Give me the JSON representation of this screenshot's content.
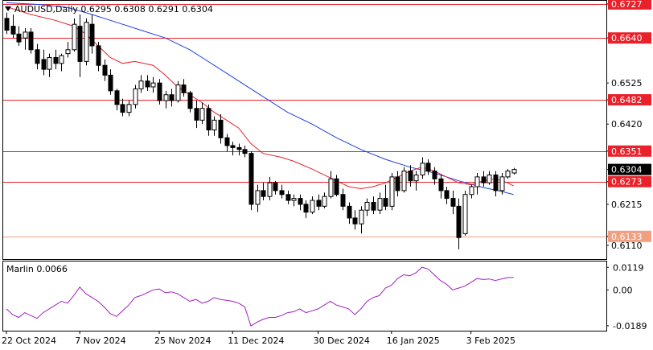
{
  "header": {
    "symbol_line": "AUDUSD,Daily  0.6295 0.6308 0.6291 0.6304",
    "indicator_label": "Marlin 0.0066"
  },
  "colors": {
    "level": "#e8212a",
    "support": "#f0a080",
    "ma_fast": "#e8212a",
    "ma_slow": "#1f3fe0",
    "oscillator": "#a020c0",
    "current_price_bg": "#000000"
  },
  "chart_data": {
    "type": "candlestick",
    "symbol": "AUDUSD",
    "timeframe": "Daily",
    "last_ohlc": {
      "open": 0.6295,
      "high": 0.6308,
      "low": 0.6291,
      "close": 0.6304
    },
    "ylim": [
      0.6075,
      0.6735
    ],
    "price_axis_ticks": [
      0.6727,
      0.664,
      0.6525,
      0.6482,
      0.642,
      0.6351,
      0.6304,
      0.6273,
      0.6215,
      0.6133,
      0.611
    ],
    "x_tick_labels": [
      "22 Oct 2024",
      "7 Nov 2024",
      "25 Nov 2024",
      "11 Dec 2024",
      "30 Dec 2024",
      "16 Jan 2025",
      "3 Feb 2025"
    ],
    "x_tick_index": [
      0,
      12,
      25,
      37,
      51,
      63,
      76
    ],
    "horizontal_levels": [
      {
        "value": 0.6727,
        "label": "0.6727",
        "style": "resistance"
      },
      {
        "value": 0.664,
        "label": "0.6640",
        "style": "resistance"
      },
      {
        "value": 0.6482,
        "label": "0.6482",
        "style": "resistance"
      },
      {
        "value": 0.6351,
        "label": "0.6351",
        "style": "resistance"
      },
      {
        "value": 0.6273,
        "label": "0.6273",
        "style": "resistance"
      },
      {
        "value": 0.6133,
        "label": "0.6133",
        "style": "support"
      }
    ],
    "current_price": 0.6304,
    "candles": [
      [
        0.669,
        0.6705,
        0.665,
        0.666
      ],
      [
        0.667,
        0.67,
        0.664,
        0.665
      ],
      [
        0.665,
        0.667,
        0.662,
        0.663
      ],
      [
        0.664,
        0.6665,
        0.661,
        0.6655
      ],
      [
        0.6655,
        0.6665,
        0.66,
        0.661
      ],
      [
        0.661,
        0.6625,
        0.656,
        0.6575
      ],
      [
        0.6585,
        0.661,
        0.6545,
        0.656
      ],
      [
        0.656,
        0.66,
        0.654,
        0.659
      ],
      [
        0.659,
        0.661,
        0.656,
        0.6575
      ],
      [
        0.6575,
        0.66,
        0.6555,
        0.6595
      ],
      [
        0.66,
        0.663,
        0.659,
        0.661
      ],
      [
        0.661,
        0.669,
        0.6605,
        0.6675
      ],
      [
        0.667,
        0.67,
        0.654,
        0.658
      ],
      [
        0.658,
        0.669,
        0.657,
        0.668
      ],
      [
        0.6675,
        0.67,
        0.66,
        0.662
      ],
      [
        0.662,
        0.663,
        0.6555,
        0.657
      ],
      [
        0.657,
        0.6585,
        0.653,
        0.6545
      ],
      [
        0.6545,
        0.656,
        0.6495,
        0.6505
      ],
      [
        0.6505,
        0.651,
        0.6455,
        0.647
      ],
      [
        0.647,
        0.6485,
        0.644,
        0.645
      ],
      [
        0.645,
        0.648,
        0.644,
        0.647
      ],
      [
        0.647,
        0.652,
        0.646,
        0.651
      ],
      [
        0.651,
        0.6545,
        0.65,
        0.653
      ],
      [
        0.653,
        0.6545,
        0.6505,
        0.6515
      ],
      [
        0.6515,
        0.654,
        0.65,
        0.6525
      ],
      [
        0.6525,
        0.6535,
        0.647,
        0.648
      ],
      [
        0.648,
        0.6505,
        0.646,
        0.6495
      ],
      [
        0.6495,
        0.651,
        0.6465,
        0.648
      ],
      [
        0.648,
        0.653,
        0.6475,
        0.652
      ],
      [
        0.652,
        0.6535,
        0.649,
        0.65
      ],
      [
        0.65,
        0.6505,
        0.645,
        0.646
      ],
      [
        0.646,
        0.648,
        0.641,
        0.643
      ],
      [
        0.643,
        0.6475,
        0.642,
        0.646
      ],
      [
        0.646,
        0.647,
        0.639,
        0.6405
      ],
      [
        0.6405,
        0.644,
        0.639,
        0.643
      ],
      [
        0.643,
        0.6445,
        0.637,
        0.6385
      ],
      [
        0.6385,
        0.6395,
        0.635,
        0.6365
      ],
      [
        0.6365,
        0.6375,
        0.634,
        0.636
      ],
      [
        0.636,
        0.637,
        0.634,
        0.6355
      ],
      [
        0.6355,
        0.6365,
        0.6335,
        0.6345
      ],
      [
        0.6345,
        0.635,
        0.62,
        0.6215
      ],
      [
        0.6215,
        0.6265,
        0.6195,
        0.625
      ],
      [
        0.625,
        0.627,
        0.6225,
        0.6235
      ],
      [
        0.6235,
        0.6285,
        0.6225,
        0.627
      ],
      [
        0.627,
        0.6275,
        0.624,
        0.625
      ],
      [
        0.625,
        0.6265,
        0.623,
        0.624
      ],
      [
        0.624,
        0.625,
        0.6215,
        0.6225
      ],
      [
        0.6225,
        0.624,
        0.621,
        0.623
      ],
      [
        0.623,
        0.624,
        0.62,
        0.6215
      ],
      [
        0.6215,
        0.6225,
        0.618,
        0.6195
      ],
      [
        0.6195,
        0.6235,
        0.619,
        0.6225
      ],
      [
        0.6225,
        0.624,
        0.62,
        0.621
      ],
      [
        0.621,
        0.6245,
        0.6205,
        0.6235
      ],
      [
        0.6235,
        0.63,
        0.623,
        0.628
      ],
      [
        0.628,
        0.629,
        0.6235,
        0.624
      ],
      [
        0.624,
        0.6255,
        0.62,
        0.621
      ],
      [
        0.621,
        0.622,
        0.6165,
        0.618
      ],
      [
        0.618,
        0.62,
        0.615,
        0.6165
      ],
      [
        0.6165,
        0.621,
        0.614,
        0.62
      ],
      [
        0.62,
        0.623,
        0.6185,
        0.622
      ],
      [
        0.622,
        0.6235,
        0.619,
        0.62
      ],
      [
        0.62,
        0.6245,
        0.619,
        0.623
      ],
      [
        0.623,
        0.6265,
        0.62,
        0.621
      ],
      [
        0.621,
        0.6295,
        0.62,
        0.6285
      ],
      [
        0.6285,
        0.63,
        0.6235,
        0.625
      ],
      [
        0.625,
        0.631,
        0.6245,
        0.63
      ],
      [
        0.63,
        0.6315,
        0.626,
        0.6275
      ],
      [
        0.6275,
        0.63,
        0.625,
        0.629
      ],
      [
        0.629,
        0.6335,
        0.628,
        0.632
      ],
      [
        0.632,
        0.633,
        0.629,
        0.63
      ],
      [
        0.63,
        0.631,
        0.6265,
        0.628
      ],
      [
        0.628,
        0.629,
        0.623,
        0.625
      ],
      [
        0.625,
        0.626,
        0.6215,
        0.623
      ],
      [
        0.623,
        0.625,
        0.619,
        0.621
      ],
      [
        0.621,
        0.623,
        0.61,
        0.613
      ],
      [
        0.614,
        0.625,
        0.6135,
        0.624
      ],
      [
        0.624,
        0.6265,
        0.623,
        0.626
      ],
      [
        0.626,
        0.6295,
        0.624,
        0.6285
      ],
      [
        0.6285,
        0.63,
        0.626,
        0.627
      ],
      [
        0.627,
        0.63,
        0.6265,
        0.629
      ],
      [
        0.629,
        0.63,
        0.6235,
        0.625
      ],
      [
        0.625,
        0.6295,
        0.624,
        0.6285
      ],
      [
        0.6285,
        0.6305,
        0.628,
        0.63
      ],
      [
        0.6295,
        0.6308,
        0.6291,
        0.6304
      ]
    ],
    "ma_fast": [
      [
        0,
        0.672
      ],
      [
        4,
        0.67
      ],
      [
        8,
        0.6685
      ],
      [
        11,
        0.667
      ],
      [
        13,
        0.665
      ],
      [
        15,
        0.662
      ],
      [
        17,
        0.659
      ],
      [
        19,
        0.6575
      ],
      [
        21,
        0.658
      ],
      [
        24,
        0.657
      ],
      [
        26,
        0.6545
      ],
      [
        28,
        0.6515
      ],
      [
        30,
        0.6495
      ],
      [
        32,
        0.6475
      ],
      [
        34,
        0.645
      ],
      [
        36,
        0.643
      ],
      [
        38,
        0.641
      ],
      [
        40,
        0.637
      ],
      [
        42,
        0.6345
      ],
      [
        45,
        0.6335
      ],
      [
        47,
        0.6325
      ],
      [
        50,
        0.6305
      ],
      [
        52,
        0.629
      ],
      [
        54,
        0.6275
      ],
      [
        56,
        0.626
      ],
      [
        58,
        0.6255
      ],
      [
        60,
        0.626
      ],
      [
        62,
        0.627
      ],
      [
        64,
        0.6285
      ],
      [
        66,
        0.63
      ],
      [
        68,
        0.631
      ],
      [
        70,
        0.63
      ],
      [
        72,
        0.6285
      ],
      [
        74,
        0.627
      ],
      [
        76,
        0.6265
      ],
      [
        78,
        0.6275
      ],
      [
        80,
        0.628
      ],
      [
        82,
        0.627
      ],
      [
        83,
        0.6262
      ]
    ],
    "ma_slow": [
      [
        0,
        0.673
      ],
      [
        6,
        0.6725
      ],
      [
        10,
        0.6718
      ],
      [
        14,
        0.67
      ],
      [
        18,
        0.668
      ],
      [
        22,
        0.666
      ],
      [
        26,
        0.664
      ],
      [
        30,
        0.661
      ],
      [
        34,
        0.657
      ],
      [
        38,
        0.653
      ],
      [
        42,
        0.649
      ],
      [
        46,
        0.645
      ],
      [
        50,
        0.642
      ],
      [
        54,
        0.6385
      ],
      [
        58,
        0.6355
      ],
      [
        62,
        0.633
      ],
      [
        66,
        0.631
      ],
      [
        70,
        0.6295
      ],
      [
        74,
        0.6275
      ],
      [
        78,
        0.6258
      ],
      [
        81,
        0.6248
      ],
      [
        83,
        0.624
      ]
    ],
    "oscillator": {
      "name": "Marlin",
      "current": 0.0066,
      "ylim": [
        -0.0215,
        0.015
      ],
      "ticks": [
        0.0119,
        0.0,
        -0.0189
      ],
      "tick_labels": [
        "0.0119",
        "0.00",
        "-0.0189"
      ],
      "points": [
        [
          0,
          -0.01
        ],
        [
          1,
          -0.013
        ],
        [
          2,
          -0.0145
        ],
        [
          3,
          -0.012
        ],
        [
          4,
          -0.0135
        ],
        [
          5,
          -0.015
        ],
        [
          6,
          -0.012
        ],
        [
          7,
          -0.01
        ],
        [
          8,
          -0.008
        ],
        [
          9,
          -0.006
        ],
        [
          10,
          -0.007
        ],
        [
          11,
          -0.003
        ],
        [
          12,
          0.0015
        ],
        [
          13,
          -0.002
        ],
        [
          14,
          -0.004
        ],
        [
          15,
          -0.006
        ],
        [
          16,
          -0.009
        ],
        [
          17,
          -0.0125
        ],
        [
          18,
          -0.014
        ],
        [
          19,
          -0.011
        ],
        [
          20,
          -0.008
        ],
        [
          21,
          -0.004
        ],
        [
          22,
          -0.003
        ],
        [
          23,
          -0.0015
        ],
        [
          24,
          0.0
        ],
        [
          25,
          0.0005
        ],
        [
          26,
          -0.0015
        ],
        [
          27,
          -0.001
        ],
        [
          28,
          -0.002
        ],
        [
          29,
          -0.004
        ],
        [
          30,
          -0.006
        ],
        [
          31,
          -0.005
        ],
        [
          32,
          -0.007
        ],
        [
          33,
          -0.006
        ],
        [
          34,
          -0.004
        ],
        [
          35,
          -0.005
        ],
        [
          36,
          -0.0055
        ],
        [
          37,
          -0.006
        ],
        [
          38,
          -0.007
        ],
        [
          39,
          -0.009
        ],
        [
          40,
          -0.019
        ],
        [
          41,
          -0.017
        ],
        [
          42,
          -0.0155
        ],
        [
          43,
          -0.0145
        ],
        [
          44,
          -0.0145
        ],
        [
          45,
          -0.0135
        ],
        [
          46,
          -0.012
        ],
        [
          47,
          -0.0115
        ],
        [
          48,
          -0.01
        ],
        [
          49,
          -0.012
        ],
        [
          50,
          -0.011
        ],
        [
          51,
          -0.01
        ],
        [
          52,
          -0.008
        ],
        [
          53,
          -0.006
        ],
        [
          54,
          -0.008
        ],
        [
          55,
          -0.009
        ],
        [
          56,
          -0.01
        ],
        [
          57,
          -0.013
        ],
        [
          58,
          -0.01
        ],
        [
          59,
          -0.006
        ],
        [
          60,
          -0.004
        ],
        [
          61,
          -0.003
        ],
        [
          62,
          0.001
        ],
        [
          63,
          0.0025
        ],
        [
          64,
          0.006
        ],
        [
          65,
          0.008
        ],
        [
          66,
          0.0075
        ],
        [
          67,
          0.009
        ],
        [
          68,
          0.012
        ],
        [
          69,
          0.011
        ],
        [
          70,
          0.008
        ],
        [
          71,
          0.005
        ],
        [
          72,
          0.003
        ],
        [
          73,
          0.0
        ],
        [
          74,
          0.001
        ],
        [
          75,
          0.002
        ],
        [
          76,
          0.004
        ],
        [
          77,
          0.006
        ],
        [
          78,
          0.0055
        ],
        [
          79,
          0.0058
        ],
        [
          80,
          0.005
        ],
        [
          81,
          0.0058
        ],
        [
          82,
          0.0065
        ],
        [
          83,
          0.0066
        ]
      ]
    }
  }
}
